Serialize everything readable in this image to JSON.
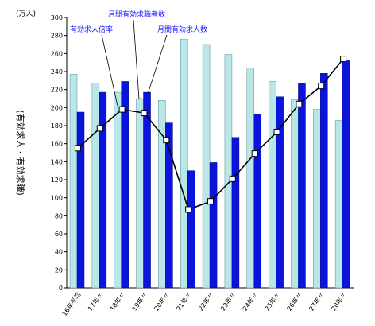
{
  "chart_data": {
    "type": "bar",
    "unit_label": "(万人)",
    "ylabel": "(有効求人・有効求職)",
    "ylim": [
      0,
      300
    ],
    "ytick_step": 20,
    "categories": [
      "16年平均",
      "17年〃",
      "18年〃",
      "19年〃",
      "20年〃",
      "21年〃",
      "22年〃",
      "23年〃",
      "24年〃",
      "25年〃",
      "26年〃",
      "27年〃",
      "28年〃"
    ],
    "series": [
      {
        "name": "月間有効求職者数",
        "type": "bar",
        "color": "#b9e6e6",
        "values": [
          237,
          227,
          217,
          210,
          208,
          276,
          270,
          259,
          244,
          229,
          209,
          198,
          186
        ]
      },
      {
        "name": "月間有効求人数",
        "type": "bar",
        "color": "#0a14dc",
        "values": [
          195,
          217,
          229,
          217,
          183,
          130,
          139,
          167,
          193,
          212,
          227,
          238,
          252
        ]
      },
      {
        "name": "有効求人倍率",
        "type": "line",
        "color": "#000000",
        "values": [
          155,
          177,
          198,
          194,
          164,
          87,
          96,
          121,
          149,
          173,
          204,
          224,
          254
        ]
      }
    ],
    "annotations": [
      "有効求人倍率",
      "月間有効求職者数",
      "月間有効求人数"
    ]
  }
}
